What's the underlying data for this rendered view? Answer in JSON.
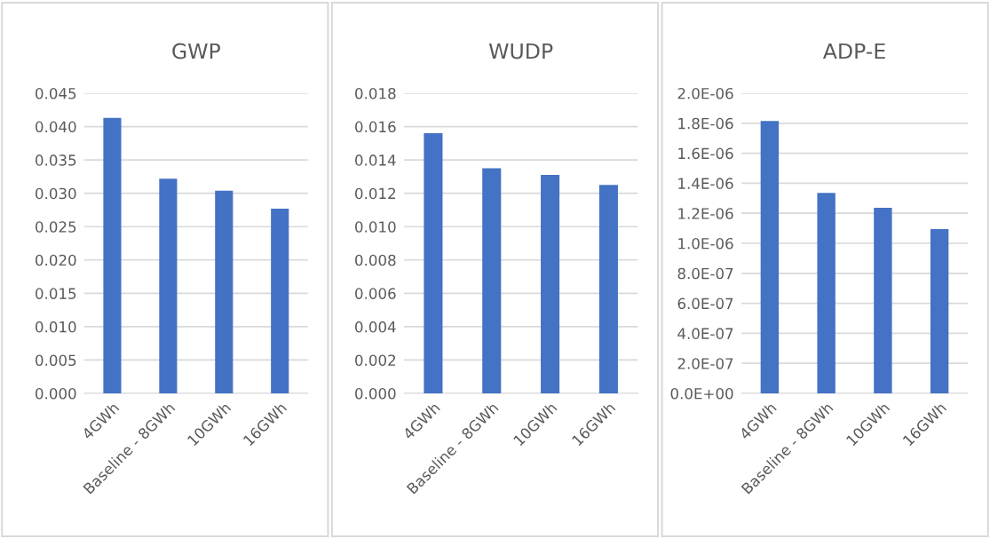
{
  "chart_data": [
    {
      "type": "bar",
      "title": "GWP",
      "categories": [
        "4GWh",
        "Baseline - 8GWh",
        "10GWh",
        "16GWh"
      ],
      "values": [
        0.0413,
        0.0322,
        0.0304,
        0.0277
      ],
      "color": "#4472c4",
      "ylim": [
        0,
        0.045
      ],
      "yticks": [
        {
          "value": 0,
          "label": "0.000"
        },
        {
          "value": 0.005,
          "label": "0.005"
        },
        {
          "value": 0.01,
          "label": "0.010"
        },
        {
          "value": 0.015,
          "label": "0.015"
        },
        {
          "value": 0.02,
          "label": "0.020"
        },
        {
          "value": 0.025,
          "label": "0.025"
        },
        {
          "value": 0.03,
          "label": "0.030"
        },
        {
          "value": 0.035,
          "label": "0.035"
        },
        {
          "value": 0.04,
          "label": "0.040"
        },
        {
          "value": 0.045,
          "label": "0.045"
        }
      ],
      "grid": "y"
    },
    {
      "type": "bar",
      "title": "WUDP",
      "categories": [
        "4GWh",
        "Baseline - 8GWh",
        "10GWh",
        "16GWh"
      ],
      "values": [
        0.0156,
        0.0135,
        0.0131,
        0.0125
      ],
      "color": "#4472c4",
      "ylim": [
        0,
        0.018
      ],
      "yticks": [
        {
          "value": 0,
          "label": "0.000"
        },
        {
          "value": 0.002,
          "label": "0.002"
        },
        {
          "value": 0.004,
          "label": "0.004"
        },
        {
          "value": 0.006,
          "label": "0.006"
        },
        {
          "value": 0.008,
          "label": "0.008"
        },
        {
          "value": 0.01,
          "label": "0.010"
        },
        {
          "value": 0.012,
          "label": "0.012"
        },
        {
          "value": 0.014,
          "label": "0.014"
        },
        {
          "value": 0.016,
          "label": "0.016"
        },
        {
          "value": 0.018,
          "label": "0.018"
        }
      ],
      "grid": "y"
    },
    {
      "type": "bar",
      "title": "ADP-E",
      "categories": [
        "4GWh",
        "Baseline - 8GWh",
        "10GWh",
        "16GWh"
      ],
      "values": [
        1.815e-06,
        1.336e-06,
        1.237e-06,
        1.094e-06
      ],
      "color": "#4472c4",
      "ylim": [
        0,
        2e-06
      ],
      "yticks": [
        {
          "value": 0,
          "label": "0.0E+00"
        },
        {
          "value": 2e-07,
          "label": "2.0E-07"
        },
        {
          "value": 4e-07,
          "label": "4.0E-07"
        },
        {
          "value": 6e-07,
          "label": "6.0E-07"
        },
        {
          "value": 8e-07,
          "label": "8.0E-07"
        },
        {
          "value": 1e-06,
          "label": "1.0E-06"
        },
        {
          "value": 1.2e-06,
          "label": "1.2E-06"
        },
        {
          "value": 1.4e-06,
          "label": "1.4E-06"
        },
        {
          "value": 1.6e-06,
          "label": "1.6E-06"
        },
        {
          "value": 1.8e-06,
          "label": "1.8E-06"
        },
        {
          "value": 2e-06,
          "label": "2.0E-06"
        }
      ],
      "grid": "y"
    }
  ]
}
